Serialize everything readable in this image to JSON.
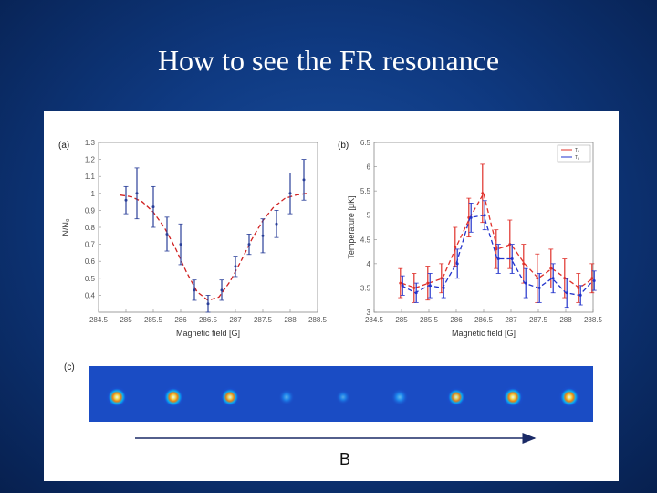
{
  "slide": {
    "title": "How to see the FR resonance"
  },
  "colors": {
    "red": "#e0302a",
    "blue": "#2233cc",
    "fit": "#d02020",
    "arrow": "#1a2a66"
  },
  "chart_data": [
    {
      "type": "line",
      "panel_label": "(a)",
      "xlabel": "Magnetic field [G]",
      "ylabel": "N/N₀",
      "xlim": [
        284.5,
        288.5
      ],
      "ylim": [
        0.3,
        1.3
      ],
      "xticks": [
        284.5,
        285,
        285.5,
        286,
        286.5,
        287,
        287.5,
        288,
        288.5
      ],
      "xtick_labels": [
        "284.5",
        "285",
        "285.5",
        "286",
        "286.5",
        "287",
        "287.5",
        "288",
        "288.5"
      ],
      "yticks": [
        0.4,
        0.5,
        0.6,
        0.7,
        0.8,
        0.9,
        1,
        1.1,
        1.2,
        1.3
      ],
      "grid": false,
      "series": [
        {
          "kind": "points",
          "x": [
            285,
            285.2,
            285.5,
            285.75,
            286,
            286.25,
            286.5,
            286.75,
            287,
            287.25,
            287.5,
            287.75,
            288,
            288.25
          ],
          "y": [
            0.96,
            1.0,
            0.92,
            0.76,
            0.7,
            0.43,
            0.35,
            0.43,
            0.57,
            0.7,
            0.75,
            0.82,
            1.0,
            1.08
          ],
          "err": [
            0.08,
            0.15,
            0.12,
            0.1,
            0.12,
            0.06,
            0.05,
            0.06,
            0.06,
            0.06,
            0.1,
            0.08,
            0.12,
            0.12
          ]
        },
        {
          "kind": "fit",
          "x": [
            284.9,
            285.1,
            285.3,
            285.5,
            285.7,
            285.9,
            286.1,
            286.3,
            286.5,
            286.7,
            286.9,
            287.1,
            287.3,
            287.5,
            287.7,
            287.9,
            288.1,
            288.3
          ],
          "y": [
            0.99,
            0.98,
            0.95,
            0.89,
            0.8,
            0.68,
            0.54,
            0.42,
            0.37,
            0.39,
            0.48,
            0.6,
            0.73,
            0.84,
            0.92,
            0.97,
            0.99,
            1.0
          ]
        }
      ]
    },
    {
      "type": "line",
      "panel_label": "(b)",
      "xlabel": "Magnetic field [G]",
      "ylabel": "Temperature [μK]",
      "xlim": [
        284.5,
        288.5
      ],
      "ylim": [
        3,
        6.5
      ],
      "xticks": [
        284.5,
        285,
        285.5,
        286,
        286.5,
        287,
        287.5,
        288,
        288.5
      ],
      "xtick_labels": [
        "284.5",
        "285",
        "285.5",
        "286",
        "286.5",
        "287",
        "287.5",
        "288",
        "288.5"
      ],
      "yticks": [
        3,
        3.5,
        4,
        4.5,
        5,
        5.5,
        6,
        6.5
      ],
      "ytick_labels": [
        "3",
        "3.5",
        "4",
        "4.5",
        "5",
        "5.5",
        "6",
        "6.5"
      ],
      "legend": {
        "position": "top-right",
        "entries": [
          "Tᵧ",
          "Tᵧ"
        ]
      },
      "series": [
        {
          "name": "Tᵧ",
          "color": "red",
          "x": [
            285,
            285.25,
            285.5,
            285.75,
            286,
            286.25,
            286.5,
            286.75,
            287,
            287.25,
            287.5,
            287.75,
            288,
            288.25,
            288.5
          ],
          "y": [
            3.6,
            3.5,
            3.6,
            3.7,
            4.35,
            4.95,
            5.45,
            4.3,
            4.4,
            4.0,
            3.7,
            3.9,
            3.7,
            3.5,
            3.7
          ],
          "err": [
            0.3,
            0.3,
            0.35,
            0.3,
            0.4,
            0.4,
            0.6,
            0.4,
            0.5,
            0.4,
            0.5,
            0.4,
            0.4,
            0.3,
            0.3
          ]
        },
        {
          "name": "Tᵧ",
          "color": "blue",
          "x": [
            285,
            285.25,
            285.5,
            285.75,
            286,
            286.25,
            286.5,
            286.75,
            287,
            287.25,
            287.5,
            287.75,
            288,
            288.25,
            288.5
          ],
          "y": [
            3.55,
            3.4,
            3.55,
            3.5,
            4.0,
            4.95,
            5.0,
            4.1,
            4.1,
            3.6,
            3.5,
            3.7,
            3.4,
            3.35,
            3.65
          ],
          "err": [
            0.2,
            0.2,
            0.25,
            0.2,
            0.3,
            0.3,
            0.3,
            0.3,
            0.3,
            0.3,
            0.3,
            0.3,
            0.3,
            0.2,
            0.2
          ]
        }
      ]
    },
    {
      "type": "image_strip",
      "panel_label": "(c)",
      "cloud_intensity": [
        0.85,
        0.85,
        0.75,
        0.35,
        0.25,
        0.45,
        0.7,
        0.85,
        0.85
      ],
      "arrow_label": "B"
    }
  ]
}
